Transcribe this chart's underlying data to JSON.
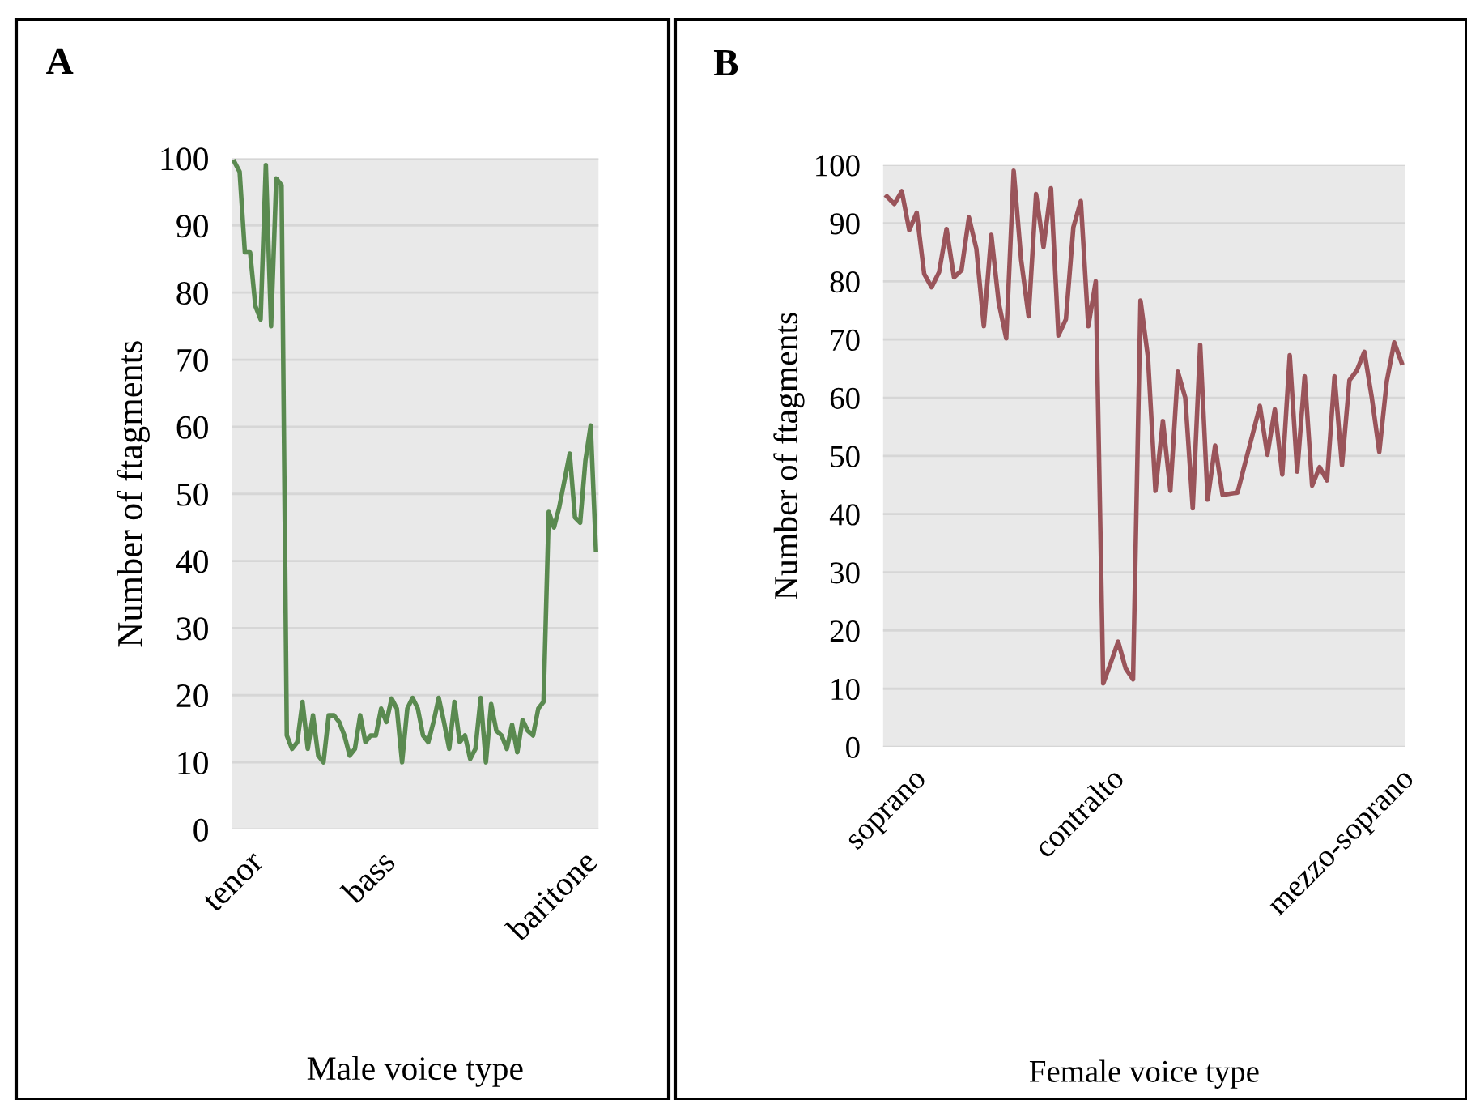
{
  "chart_data": [
    {
      "type": "line",
      "title": "A",
      "xlabel": "Male voice type",
      "ylabel": "Number of ftagments",
      "ylim": [
        0,
        100
      ],
      "yticks": [
        0,
        10,
        20,
        30,
        40,
        50,
        60,
        70,
        80,
        90,
        100
      ],
      "grid": "y",
      "legend": false,
      "categories": [
        "tenor",
        null,
        null,
        null,
        null,
        null,
        null,
        null,
        null,
        null,
        null,
        null,
        null,
        null,
        null,
        null,
        null,
        null,
        null,
        null,
        null,
        null,
        null,
        null,
        null,
        null,
        "bass",
        null,
        null,
        null,
        null,
        null,
        null,
        null,
        null,
        null,
        null,
        null,
        null,
        null,
        null,
        null,
        null,
        null,
        null,
        null,
        null,
        null,
        null,
        null,
        null,
        null,
        null,
        null,
        null,
        null,
        null,
        null,
        null,
        null,
        null,
        "baritone",
        null,
        null,
        null,
        null,
        null,
        null,
        null,
        null
      ],
      "series": [
        {
          "color": "#5a8a50",
          "values": [
            99.5,
            98,
            86,
            86,
            78,
            76,
            99,
            75,
            97,
            96,
            14,
            12,
            13,
            19,
            12,
            17,
            11,
            10,
            17,
            17,
            16,
            14,
            11,
            12,
            17,
            13,
            14,
            14,
            18,
            16,
            19.5,
            18,
            10,
            18,
            19.6,
            18,
            14,
            13,
            16,
            19.6,
            16,
            12,
            19,
            13,
            14,
            10.5,
            12,
            19.6,
            10,
            18.7,
            14.7,
            14,
            12,
            15.6,
            11.5,
            16.3,
            14.7,
            14,
            18,
            19,
            47.3,
            45,
            48,
            52,
            56,
            46.5,
            45.7,
            55,
            60.2,
            41.7
          ]
        }
      ]
    },
    {
      "type": "line",
      "title": "B",
      "xlabel": "Female voice type",
      "ylabel": "Number of ftagments",
      "ylim": [
        0,
        100
      ],
      "yticks": [
        0,
        10,
        20,
        30,
        40,
        50,
        60,
        70,
        80,
        90,
        100
      ],
      "grid": "y",
      "legend": false,
      "categories": [
        "soprano",
        null,
        null,
        null,
        null,
        null,
        null,
        null,
        null,
        null,
        null,
        null,
        null,
        null,
        null,
        null,
        null,
        null,
        null,
        null,
        null,
        null,
        null,
        null,
        null,
        null,
        "contralto",
        null,
        null,
        null,
        null,
        null,
        null,
        null,
        null,
        null,
        null,
        null,
        null,
        null,
        null,
        null,
        null,
        null,
        null,
        null,
        null,
        null,
        null,
        null,
        null,
        null,
        null,
        null,
        null,
        null,
        null,
        null,
        null,
        null,
        null,
        "mezzo-soprano",
        null,
        null,
        null,
        null,
        null,
        null,
        null,
        null
      ],
      "series": [
        {
          "color": "#9a545a",
          "values": [
            94.6,
            93.3,
            95.5,
            88.8,
            91.8,
            81.3,
            79,
            81.6,
            89,
            80.7,
            81.9,
            91,
            85.6,
            72.3,
            88,
            76.3,
            70.2,
            99,
            83.7,
            74,
            95,
            85.9,
            96,
            70.7,
            73.5,
            89.3,
            93.8,
            72.3,
            80,
            10.9,
            14.4,
            18.1,
            13.5,
            11.6,
            76.7,
            67,
            44,
            56,
            44,
            64.5,
            60,
            41,
            69.1,
            42.5,
            51.8,
            43.3,
            43.5,
            43.7,
            48.7,
            53.6,
            58.6,
            50.2,
            58,
            46.8,
            67.3,
            47.3,
            63.7,
            44.9,
            48.1,
            45.8,
            63.7,
            48.4,
            63,
            64.7,
            67.9,
            60,
            50.7,
            62.8,
            69.5,
            66
          ]
        }
      ]
    }
  ]
}
